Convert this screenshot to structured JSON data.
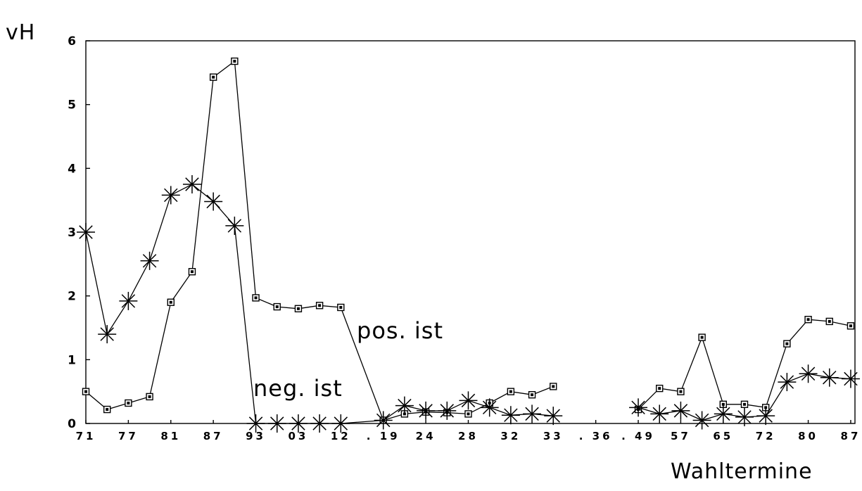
{
  "chart_data": {
    "type": "line",
    "title": "",
    "ylabel": "vH",
    "xlabel": "Wahltermine",
    "ylim": [
      0,
      6
    ],
    "yticks": [
      0,
      1,
      2,
      3,
      4,
      5,
      6
    ],
    "xlim": [
      0,
      36.2
    ],
    "x_tick_labels": [
      "71",
      "77",
      "81",
      "87",
      "93",
      "03",
      "12",
      ". 19",
      "24",
      "28",
      "32",
      "33",
      ". 36",
      ". 49",
      "57",
      "65",
      "72",
      "80",
      "87"
    ],
    "x_tick_positions": [
      0,
      2,
      4,
      6,
      8,
      10,
      12,
      14,
      16,
      18,
      20,
      22,
      24,
      26,
      28,
      30,
      32,
      34,
      36
    ],
    "grid": false,
    "series": [
      {
        "name": "pos. ist",
        "marker": "square",
        "segments": [
          [
            [
              0,
              0.5
            ],
            [
              1,
              0.22
            ],
            [
              2,
              0.32
            ],
            [
              3,
              0.42
            ],
            [
              4,
              1.9
            ],
            [
              5,
              2.38
            ],
            [
              6,
              5.43
            ],
            [
              7,
              5.68
            ],
            [
              8,
              1.97
            ],
            [
              9,
              1.83
            ],
            [
              10,
              1.8
            ],
            [
              11,
              1.85
            ],
            [
              12,
              1.82
            ],
            [
              14,
              0.05
            ],
            [
              15,
              0.15
            ],
            [
              16,
              0.18
            ],
            [
              17,
              0.17
            ],
            [
              18,
              0.15
            ],
            [
              19,
              0.32
            ],
            [
              20,
              0.5
            ],
            [
              21,
              0.45
            ],
            [
              22,
              0.58
            ]
          ],
          [
            [
              26,
              0.22
            ],
            [
              27,
              0.55
            ],
            [
              28,
              0.5
            ],
            [
              29,
              1.35
            ],
            [
              30,
              0.3
            ],
            [
              31,
              0.3
            ],
            [
              32,
              0.25
            ],
            [
              33,
              1.25
            ],
            [
              34,
              1.63
            ],
            [
              35,
              1.6
            ],
            [
              36,
              1.53
            ]
          ]
        ]
      },
      {
        "name": "neg. ist",
        "marker": "asterisk",
        "segments": [
          [
            [
              0,
              3.0
            ],
            [
              1,
              1.4
            ],
            [
              2,
              1.92
            ],
            [
              3,
              2.55
            ],
            [
              4,
              3.58
            ],
            [
              5,
              3.75
            ],
            [
              6,
              3.48
            ],
            [
              7,
              3.1
            ],
            [
              8,
              0
            ],
            [
              9,
              0
            ],
            [
              10,
              0
            ],
            [
              11,
              0
            ],
            [
              12,
              0
            ],
            [
              14,
              0.05
            ],
            [
              15,
              0.28
            ],
            [
              16,
              0.2
            ],
            [
              17,
              0.2
            ],
            [
              18,
              0.36
            ],
            [
              19,
              0.25
            ],
            [
              20,
              0.13
            ],
            [
              21,
              0.15
            ],
            [
              22,
              0.12
            ]
          ],
          [
            [
              26,
              0.25
            ],
            [
              27,
              0.15
            ],
            [
              28,
              0.2
            ],
            [
              29,
              0.05
            ],
            [
              30,
              0.15
            ],
            [
              31,
              0.1
            ],
            [
              32,
              0.12
            ],
            [
              33,
              0.65
            ],
            [
              34,
              0.78
            ],
            [
              35,
              0.72
            ],
            [
              36,
              0.7
            ]
          ]
        ]
      }
    ]
  }
}
